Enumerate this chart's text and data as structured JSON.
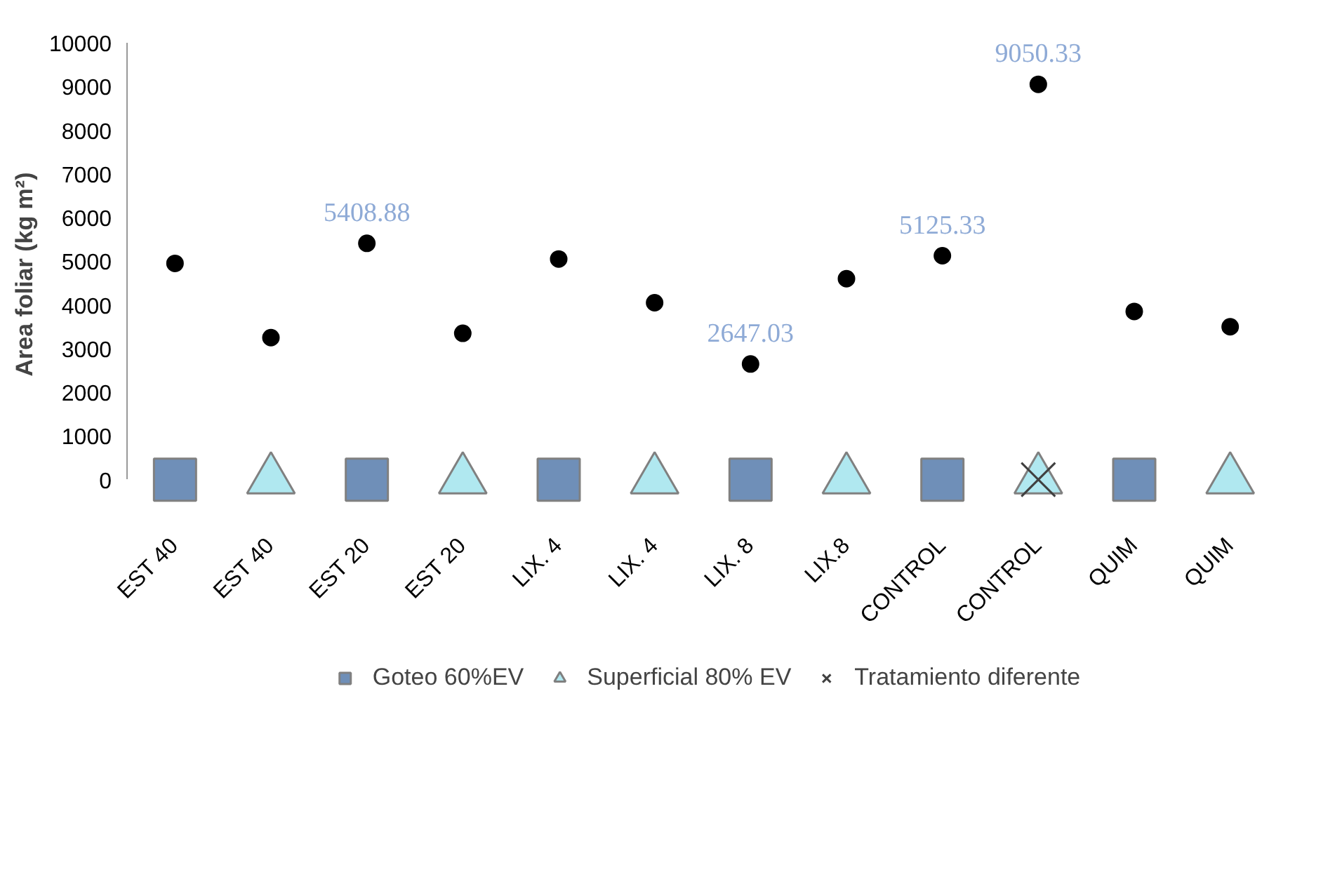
{
  "chart_data": {
    "type": "scatter",
    "ylabel": "Area foliar (kg m²)",
    "categories": [
      "EST 40",
      "EST 40",
      "EST 20",
      "EST 20",
      "LIX. 4",
      "LIX. 4",
      "LIX. 8",
      "LIX.8",
      "CONTROL",
      "CONTROL",
      "QUIM",
      "QUIM"
    ],
    "ylim": [
      0,
      10000
    ],
    "yticks": [
      0,
      1000,
      2000,
      3000,
      4000,
      5000,
      6000,
      7000,
      8000,
      9000,
      10000
    ],
    "grid": false,
    "legend": "bottom",
    "series": [
      {
        "color": "#000000",
        "marker": "circle",
        "values": [
          4950,
          3250,
          5408.88,
          3350,
          5050,
          4050,
          2647.03,
          4600,
          5125.33,
          9050.33,
          3850,
          3500
        ],
        "value_labels": [
          null,
          null,
          "5408.88",
          null,
          null,
          null,
          "2647.03",
          null,
          "5125.33",
          "9050.33",
          null,
          null
        ]
      },
      {
        "name": "Goteo 60%EV",
        "color": "#6f8fb8",
        "marker": "square",
        "values": [
          0,
          null,
          0,
          null,
          0,
          null,
          0,
          null,
          0,
          null,
          0,
          null
        ]
      },
      {
        "name": "Superficial 80% EV",
        "color": "#b0e8f0",
        "marker": "triangle",
        "values": [
          null,
          0,
          null,
          0,
          null,
          0,
          null,
          0,
          null,
          0,
          null,
          0
        ]
      },
      {
        "name": "Tratamiento diferente",
        "color": "#404040",
        "marker": "cross",
        "values": [
          null,
          null,
          null,
          null,
          null,
          null,
          null,
          null,
          null,
          0,
          null,
          null
        ]
      }
    ]
  }
}
